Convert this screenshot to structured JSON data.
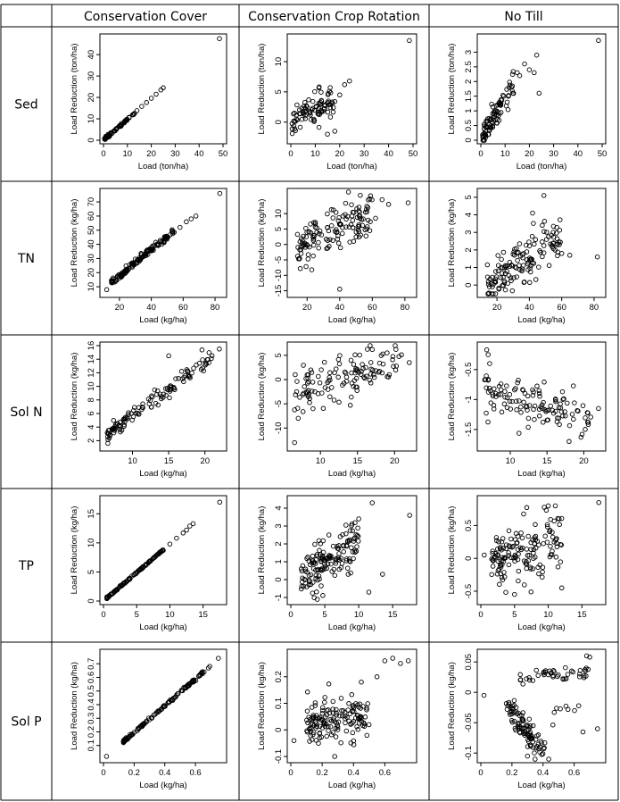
{
  "table": {
    "columns": [
      "Conservation Cover",
      "Conservation Crop Rotation",
      "No Till"
    ],
    "rows": [
      "Sed",
      "TN",
      "Sol N",
      "TP",
      "Sol P"
    ]
  },
  "chart_data": [
    {
      "type": "scatter",
      "row": "Sed",
      "col": "Conservation Cover",
      "xlabel": "Load (ton/ha)",
      "ylabel": "Load Reduction (ton/ha)",
      "xlim": [
        0,
        50
      ],
      "ylim": [
        0,
        48
      ],
      "xticks": [
        0,
        10,
        20,
        30,
        40,
        50
      ],
      "yticks": [
        0,
        10,
        20,
        30,
        40
      ],
      "pattern": "line",
      "slope": 0.98,
      "intercept": 0,
      "noise": 0.3,
      "n": 70,
      "xmin": 0.5,
      "xmax": 13,
      "extra": [
        [
          14,
          13.8
        ],
        [
          16,
          15.8
        ],
        [
          18,
          17.6
        ],
        [
          20,
          19.6
        ],
        [
          22,
          21.5
        ],
        [
          24,
          23.5
        ],
        [
          25,
          24.5
        ],
        [
          48.5,
          47.5
        ]
      ]
    },
    {
      "type": "scatter",
      "row": "Sed",
      "col": "Conservation Crop Rotation",
      "xlabel": "Load (ton/ha)",
      "ylabel": "Load Reduction (ton/ha)",
      "xlim": [
        0,
        50
      ],
      "ylim": [
        -3,
        14
      ],
      "xticks": [
        0,
        10,
        20,
        30,
        40,
        50
      ],
      "yticks": [
        0,
        5,
        10
      ],
      "pattern": "cloud",
      "slope": 0.22,
      "intercept": 0,
      "noise": 1.4,
      "n": 90,
      "xmin": 0.5,
      "xmax": 18,
      "extra": [
        [
          20,
          4.5
        ],
        [
          22,
          6.2
        ],
        [
          24,
          6.8
        ],
        [
          18,
          -1.5
        ],
        [
          15,
          -2
        ],
        [
          12,
          3
        ],
        [
          48.5,
          13.5
        ]
      ]
    },
    {
      "type": "scatter",
      "row": "Sed",
      "col": "No Till",
      "xlabel": "Load (ton/ha)",
      "ylabel": "Load Reduction (ton/ha)",
      "xlim": [
        0,
        50
      ],
      "ylim": [
        0,
        3.5
      ],
      "xticks": [
        0,
        10,
        20,
        30,
        40,
        50
      ],
      "yticks": [
        0,
        0.5,
        1,
        1.5,
        2,
        2.5,
        3
      ],
      "pattern": "line",
      "slope": 0.14,
      "intercept": 0,
      "noise": 0.22,
      "n": 90,
      "xmin": 0.5,
      "xmax": 14,
      "extra": [
        [
          15,
          2.3
        ],
        [
          16,
          2.2
        ],
        [
          18,
          2.6
        ],
        [
          20,
          2.4
        ],
        [
          22,
          2.3
        ],
        [
          23,
          2.9
        ],
        [
          24,
          1.6
        ],
        [
          48.5,
          3.4
        ]
      ]
    },
    {
      "type": "scatter",
      "row": "TN",
      "col": "Conservation Cover",
      "xlabel": "Load (kg/ha)",
      "ylabel": "Load Reduction (kg/ha)",
      "xlim": [
        10,
        85
      ],
      "ylim": [
        5,
        77
      ],
      "xticks": [
        20,
        40,
        60,
        80
      ],
      "yticks": [
        10,
        20,
        30,
        40,
        50,
        60,
        70
      ],
      "pattern": "line",
      "slope": 0.93,
      "intercept": -1,
      "noise": 1.2,
      "n": 140,
      "xmin": 15,
      "xmax": 55,
      "extra": [
        [
          12,
          8
        ],
        [
          58,
          52
        ],
        [
          62,
          56
        ],
        [
          65,
          58
        ],
        [
          68,
          60
        ],
        [
          83,
          76
        ]
      ]
    },
    {
      "type": "scatter",
      "row": "TN",
      "col": "Conservation Crop Rotation",
      "xlabel": "Load (kg/ha)",
      "ylabel": "Load Reduction (kg/ha)",
      "xlim": [
        10,
        85
      ],
      "ylim": [
        -16,
        17
      ],
      "xticks": [
        20,
        40,
        60,
        80
      ],
      "yticks": [
        -15,
        -10,
        -5,
        0,
        5,
        10
      ],
      "pattern": "cloud",
      "slope": 0.24,
      "intercept": -4,
      "noise": 4.0,
      "n": 140,
      "xmin": 14,
      "xmax": 60,
      "extra": [
        [
          40,
          -14.5
        ],
        [
          66,
          14.5
        ],
        [
          70,
          13
        ],
        [
          82,
          13.5
        ],
        [
          62,
          8.5
        ]
      ]
    },
    {
      "type": "scatter",
      "row": "TN",
      "col": "No Till",
      "xlabel": "Load (kg/ha)",
      "ylabel": "Load Reduction (kg/ha)",
      "xlim": [
        10,
        85
      ],
      "ylim": [
        -0.5,
        5.3
      ],
      "xticks": [
        20,
        40,
        60,
        80
      ],
      "yticks": [
        0,
        1,
        2,
        3,
        4,
        5
      ],
      "pattern": "cloud",
      "slope": 0.06,
      "intercept": -0.9,
      "noise": 0.7,
      "n": 140,
      "xmin": 14,
      "xmax": 60,
      "extra": [
        [
          49,
          5.1
        ],
        [
          42,
          4.1
        ],
        [
          57,
          2.3
        ],
        [
          60,
          1.8
        ],
        [
          65,
          1.7
        ],
        [
          82,
          1.6
        ],
        [
          48,
          3.4
        ]
      ]
    },
    {
      "type": "scatter",
      "row": "Sol N",
      "col": "Conservation Cover",
      "xlabel": "Load (kg/ha)",
      "ylabel": "Load Reduction (kg/ha)",
      "xlim": [
        6,
        22.5
      ],
      "ylim": [
        1,
        16
      ],
      "xticks": [
        10,
        15,
        20
      ],
      "yticks": [
        2,
        4,
        6,
        8,
        10,
        12,
        14,
        16
      ],
      "pattern": "line",
      "slope": 0.78,
      "intercept": -2.2,
      "noise": 0.55,
      "n": 120,
      "xmin": 6.5,
      "xmax": 21,
      "extra": [
        [
          6.6,
          1.6
        ],
        [
          6.8,
          2.4
        ],
        [
          22,
          15.5
        ],
        [
          15,
          14.5
        ]
      ]
    },
    {
      "type": "scatter",
      "row": "Sol N",
      "col": "Conservation Crop Rotation",
      "xlabel": "Load (kg/ha)",
      "ylabel": "Load Reduction (kg/ha)",
      "xlim": [
        6,
        22.5
      ],
      "ylim": [
        -14,
        7
      ],
      "xticks": [
        10,
        15,
        20
      ],
      "yticks": [
        -10,
        -5,
        0,
        5
      ],
      "pattern": "cloud",
      "slope": 0.4,
      "intercept": -5,
      "noise": 2.3,
      "n": 120,
      "xmin": 6.5,
      "xmax": 21,
      "extra": [
        [
          6.5,
          -13
        ],
        [
          7,
          -8
        ],
        [
          9,
          -6
        ],
        [
          17,
          6.2
        ],
        [
          19,
          5.5
        ],
        [
          22,
          3.5
        ]
      ]
    },
    {
      "type": "scatter",
      "row": "Sol N",
      "col": "No Till",
      "xlabel": "Load (kg/ha)",
      "ylabel": "Load Reduction (kg/ha)",
      "xlim": [
        6,
        22.5
      ],
      "ylim": [
        -1.8,
        -0.1
      ],
      "xticks": [
        10,
        15,
        20
      ],
      "yticks": [
        -1.5,
        -1,
        -0.5
      ],
      "pattern": "cloud",
      "slope": -0.03,
      "intercept": -0.65,
      "noise": 0.2,
      "n": 120,
      "xmin": 6.5,
      "xmax": 21,
      "extra": [
        [
          6.8,
          -0.17
        ],
        [
          7,
          -0.25
        ],
        [
          7.2,
          -0.4
        ],
        [
          22,
          -1.15
        ],
        [
          18,
          -1.7
        ]
      ]
    },
    {
      "type": "scatter",
      "row": "TP",
      "col": "Conservation Cover",
      "xlabel": "Load (kg/ha)",
      "ylabel": "Load Reduction (kg/ha)",
      "xlim": [
        0,
        18
      ],
      "ylim": [
        0,
        17.5
      ],
      "xticks": [
        0,
        5,
        10,
        15
      ],
      "yticks": [
        0,
        5,
        10,
        15
      ],
      "pattern": "line",
      "slope": 0.98,
      "intercept": 0,
      "noise": 0.06,
      "n": 120,
      "xmin": 0.5,
      "xmax": 9,
      "extra": [
        [
          10,
          9.8
        ],
        [
          11,
          10.8
        ],
        [
          12,
          11.7
        ],
        [
          12.5,
          12.2
        ],
        [
          13,
          12.9
        ],
        [
          13.5,
          13.3
        ],
        [
          17.5,
          17
        ]
      ]
    },
    {
      "type": "scatter",
      "row": "TP",
      "col": "Conservation Crop Rotation",
      "xlabel": "Load (kg/ha)",
      "ylabel": "Load Reduction (kg/ha)",
      "xlim": [
        0,
        18
      ],
      "ylim": [
        -1.2,
        4.5
      ],
      "xticks": [
        0,
        5,
        10,
        15
      ],
      "yticks": [
        -1,
        0,
        1,
        2,
        3,
        4
      ],
      "pattern": "cloud",
      "slope": 0.22,
      "intercept": -0.2,
      "noise": 0.65,
      "n": 150,
      "xmin": 1.5,
      "xmax": 10,
      "extra": [
        [
          12,
          4.3
        ],
        [
          17.5,
          3.6
        ],
        [
          11.5,
          -0.7
        ],
        [
          13.5,
          0.3
        ],
        [
          10,
          3.4
        ]
      ]
    },
    {
      "type": "scatter",
      "row": "TP",
      "col": "No Till",
      "xlabel": "Load (kg/ha)",
      "ylabel": "Load Reduction (kg/ha)",
      "xlim": [
        0,
        18
      ],
      "ylim": [
        -0.65,
        0.9
      ],
      "xticks": [
        0,
        5,
        10,
        15
      ],
      "yticks": [
        -0.5,
        0,
        0.5
      ],
      "pattern": "cloud",
      "slope": 0.03,
      "intercept": -0.05,
      "noise": 0.22,
      "n": 150,
      "xmin": 1.5,
      "xmax": 12,
      "extra": [
        [
          17.5,
          0.85
        ],
        [
          10,
          0.8
        ],
        [
          5,
          -0.55
        ],
        [
          12,
          -0.45
        ],
        [
          0.5,
          0.05
        ]
      ]
    },
    {
      "type": "scatter",
      "row": "Sol P",
      "col": "Conservation Cover",
      "xlabel": "Load (kg/ha)",
      "ylabel": "Load Reduction (kg/ha)",
      "xlim": [
        0,
        0.78
      ],
      "ylim": [
        0,
        0.78
      ],
      "xticks": [
        0,
        0.2,
        0.4,
        0.6
      ],
      "yticks": [
        0.1,
        0.2,
        0.3,
        0.4,
        0.5,
        0.6,
        0.7
      ],
      "pattern": "line",
      "slope": 0.98,
      "intercept": 0,
      "noise": 0.005,
      "n": 120,
      "xmin": 0.13,
      "xmax": 0.7,
      "extra": [
        [
          0.02,
          0.02
        ],
        [
          0.75,
          0.74
        ]
      ]
    },
    {
      "type": "scatter",
      "row": "Sol P",
      "col": "Conservation Crop Rotation",
      "xlabel": "Load (kg/ha)",
      "ylabel": "Load Reduction (kg/ha)",
      "xlim": [
        0,
        0.78
      ],
      "ylim": [
        -0.11,
        0.29
      ],
      "xticks": [
        0,
        0.2,
        0.4,
        0.6
      ],
      "yticks": [
        -0.1,
        0,
        0.1,
        0.2
      ],
      "pattern": "cloud",
      "slope": 0.12,
      "intercept": 0.0,
      "noise": 0.04,
      "n": 150,
      "xmin": 0.1,
      "xmax": 0.5,
      "extra": [
        [
          0.6,
          0.26
        ],
        [
          0.65,
          0.27
        ],
        [
          0.7,
          0.25
        ],
        [
          0.75,
          0.26
        ],
        [
          0.55,
          0.2
        ],
        [
          0.45,
          0.18
        ],
        [
          0.02,
          -0.04
        ],
        [
          0.28,
          -0.1
        ]
      ]
    },
    {
      "type": "scatter",
      "row": "Sol P",
      "col": "No Till",
      "xlabel": "Load (kg/ha)",
      "ylabel": "Load Reduction (kg/ha)",
      "xlim": [
        0,
        0.78
      ],
      "ylim": [
        -0.11,
        0.065
      ],
      "xticks": [
        0,
        0.2,
        0.4,
        0.6
      ],
      "yticks": [
        -0.1,
        -0.05,
        0,
        0.05
      ],
      "pattern": "twoband",
      "n": 150,
      "extra": [
        [
          0.02,
          -0.005
        ],
        [
          0.68,
          0.06
        ],
        [
          0.7,
          0.058
        ],
        [
          0.75,
          -0.06
        ],
        [
          0.3,
          -0.105
        ]
      ]
    }
  ]
}
